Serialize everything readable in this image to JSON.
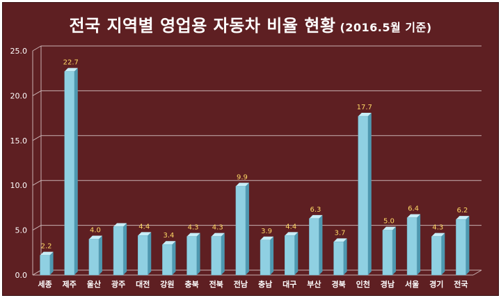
{
  "chart_data": {
    "type": "bar",
    "title": "전국 지역별 영업용 자동차 비율 현황",
    "subtitle": "(2016.5월 기준)",
    "categories": [
      "세종",
      "제주",
      "울산",
      "광주",
      "대전",
      "강원",
      "충북",
      "전북",
      "전남",
      "충남",
      "대구",
      "부산",
      "경북",
      "인천",
      "경남",
      "서울",
      "경기",
      "전국"
    ],
    "values": [
      2.2,
      22.7,
      4.0,
      5.4,
      4.4,
      3.4,
      4.3,
      4.3,
      9.9,
      3.9,
      4.4,
      6.3,
      3.7,
      17.7,
      5.0,
      6.4,
      4.3,
      6.2
    ],
    "value_labels": [
      "2.2",
      "22.7",
      "4.0",
      "",
      "4.4",
      "3.4",
      "4.3",
      "4.3",
      "9.9",
      "3.9",
      "4.4",
      "6.3",
      "3.7",
      "17.7",
      "5.0",
      "6.4",
      "4.3",
      "6.2"
    ],
    "y_ticks": [
      "0.0",
      "5.0",
      "10.0",
      "15.0",
      "20.0",
      "25.0"
    ],
    "ylim": [
      0,
      25
    ],
    "grid": true,
    "legend": "none",
    "colors": {
      "background": "#5e1f22",
      "bar_front": "#8fd0e2",
      "bar_side": "#4e98b0",
      "bar_top": "#c8eef8",
      "value_label": "#ffd966",
      "gridline": "#c9b2b3",
      "axis_text": "#ffffff"
    }
  }
}
